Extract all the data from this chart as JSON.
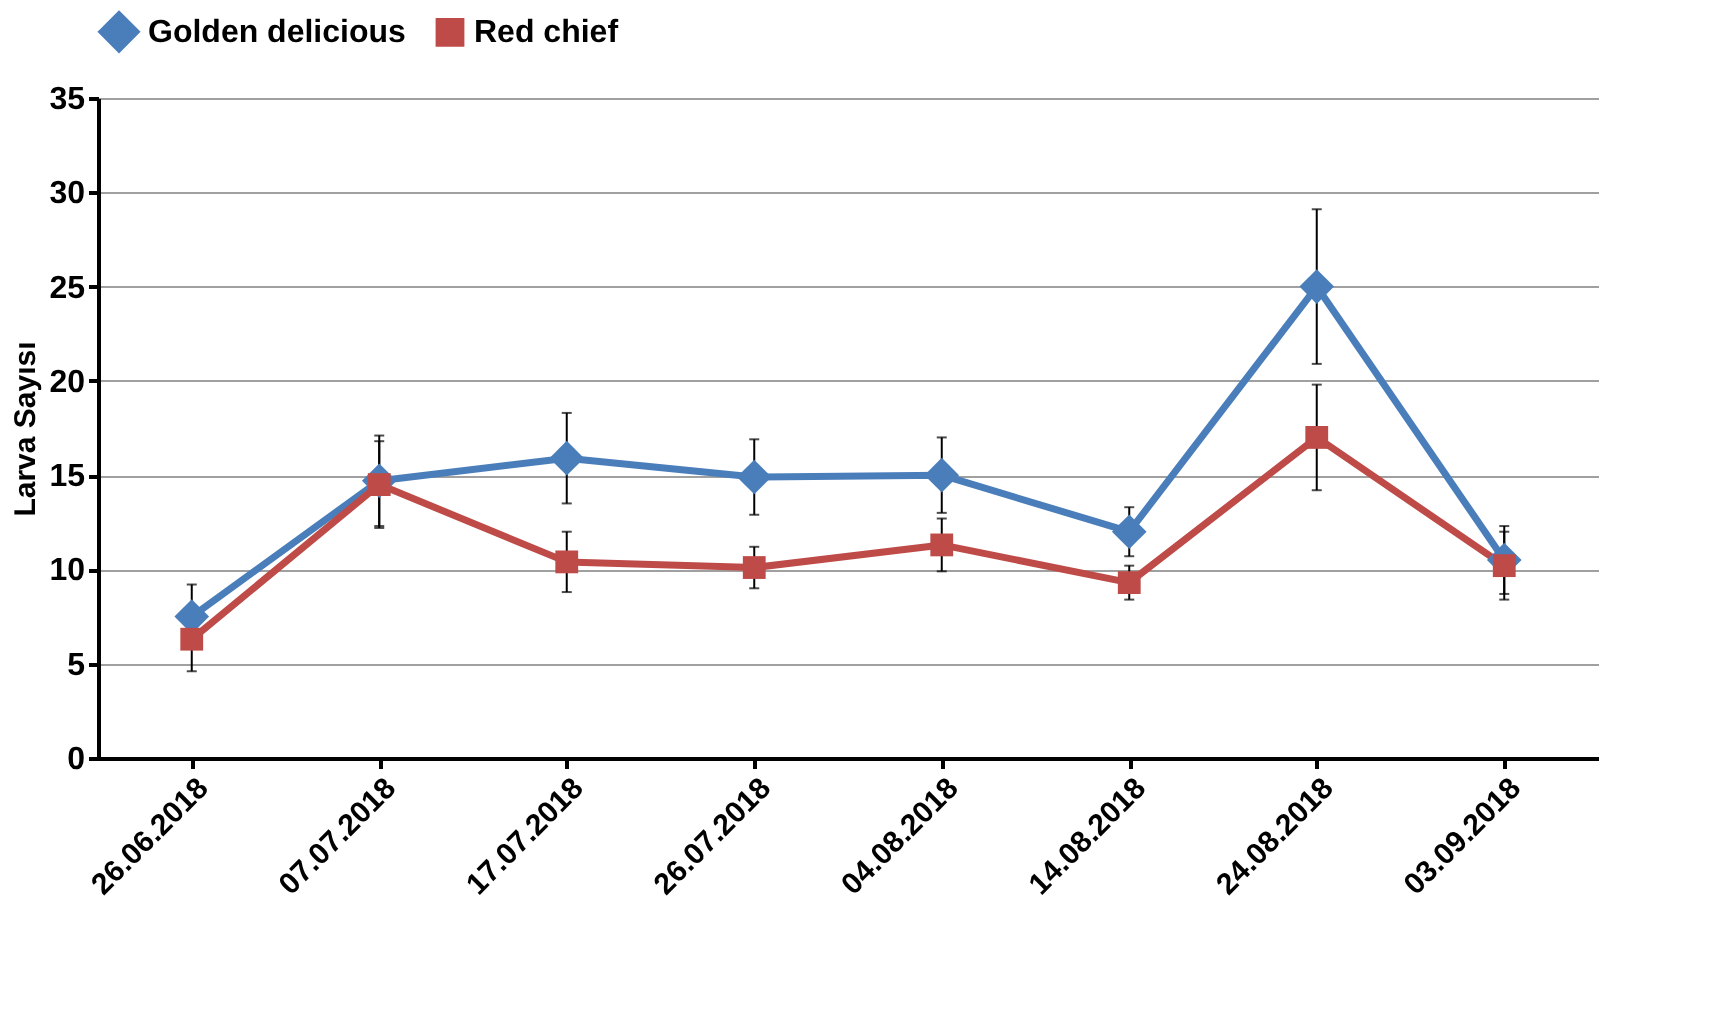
{
  "chart_data": {
    "type": "line",
    "ylabel": "Larva Sayısı",
    "categories": [
      "26.06.2018",
      "07.07.2018",
      "17.07.2018",
      "26.07.2018",
      "04.08.2018",
      "14.08.2018",
      "24.08.2018",
      "03.09.2018"
    ],
    "series": [
      {
        "name": "Golden delicious",
        "color": "#4a7ebb",
        "marker": "diamond",
        "values": [
          7.5,
          14.7,
          15.9,
          14.9,
          15.0,
          12.0,
          25.0,
          10.5
        ],
        "errors": [
          1.7,
          2.4,
          2.4,
          2.0,
          2.0,
          1.3,
          4.1,
          1.8
        ]
      },
      {
        "name": "Red chief",
        "color": "#be4b48",
        "marker": "square",
        "values": [
          6.3,
          14.5,
          10.4,
          10.1,
          11.3,
          9.3,
          17.0,
          10.2
        ],
        "errors": [
          1.7,
          2.3,
          1.6,
          1.1,
          1.4,
          0.9,
          2.8,
          1.8
        ]
      }
    ],
    "ylim": [
      0,
      35
    ],
    "yticks": [
      0,
      5,
      10,
      15,
      20,
      25,
      30,
      35
    ],
    "grid": "y",
    "legend": "top",
    "line_style": "solid"
  }
}
